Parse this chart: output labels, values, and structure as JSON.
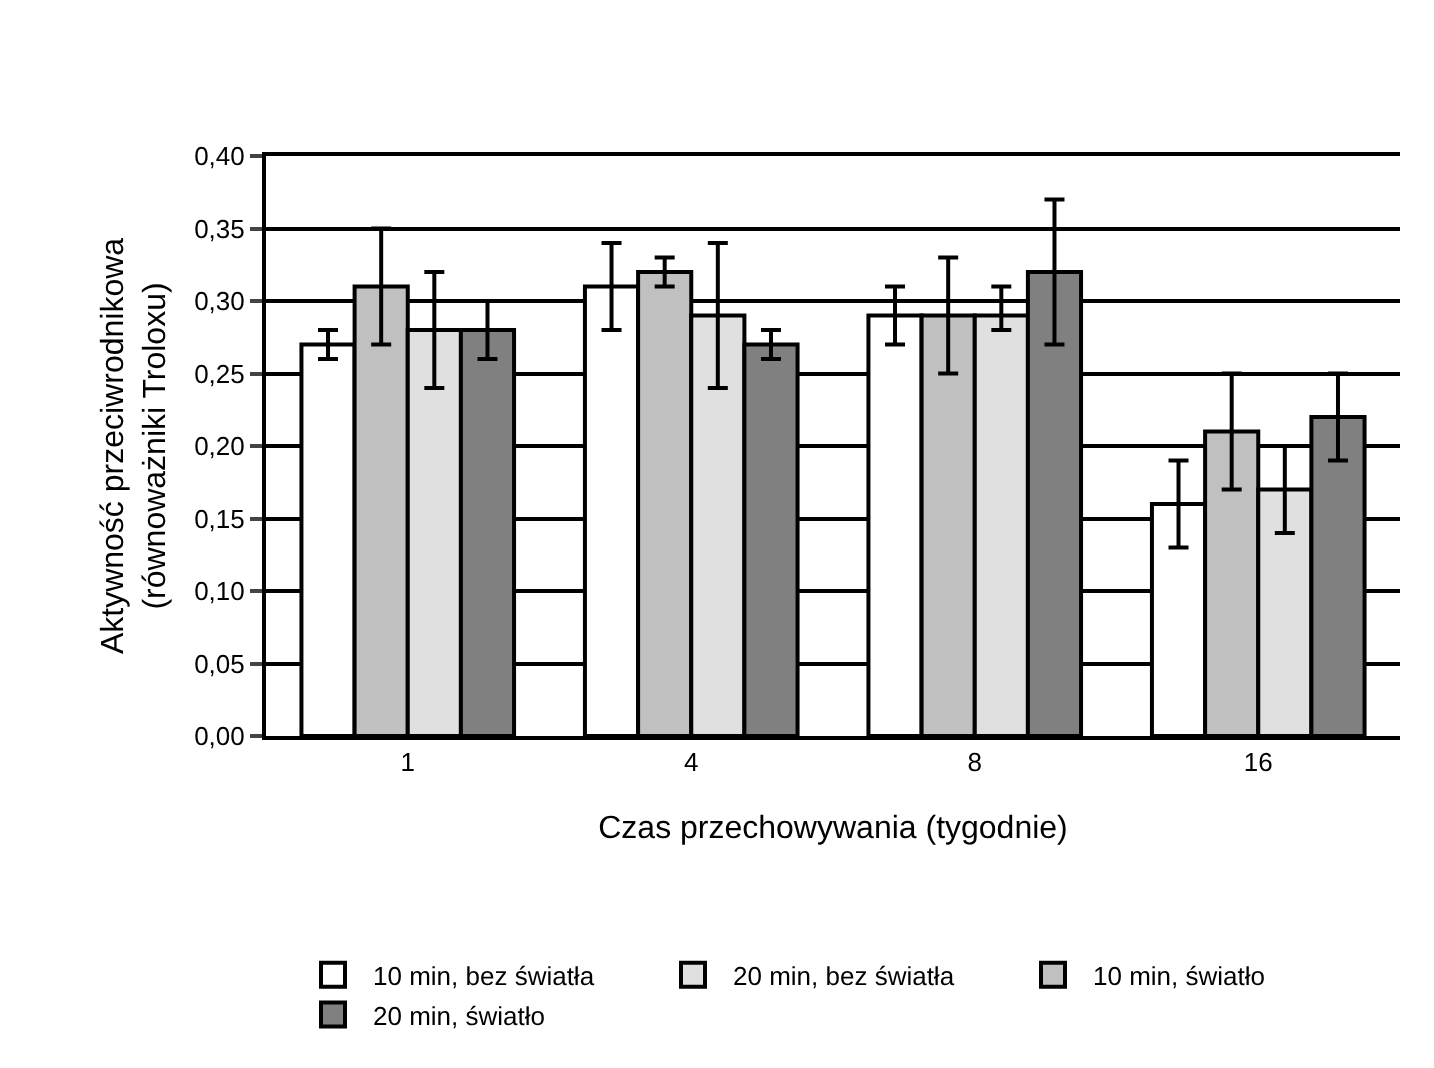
{
  "chart_data": {
    "type": "bar",
    "xlabel": "Czas przechowywania (tygodnie)",
    "ylabel": "Aktywność przeciwrodnikowa\n(równoważniki Troloxu)",
    "categories": [
      "1",
      "4",
      "8",
      "16"
    ],
    "series": [
      {
        "name": "10 min, bez światła",
        "color": "#ffffff",
        "values": [
          0.27,
          0.31,
          0.29,
          0.16
        ],
        "errors": [
          0.01,
          0.03,
          0.02,
          0.03
        ]
      },
      {
        "name": "10 min, światło",
        "color": "#c0c0c0",
        "values": [
          0.31,
          0.32,
          0.29,
          0.21
        ],
        "errors": [
          0.04,
          0.01,
          0.04,
          0.04
        ]
      },
      {
        "name": "20 min, bez światła",
        "color": "#e0e0e0",
        "values": [
          0.28,
          0.29,
          0.29,
          0.17
        ],
        "errors": [
          0.04,
          0.05,
          [
            0.28,
            0.31
          ],
          0.03
        ]
      },
      {
        "name": "20 min, światło",
        "color": "#808080",
        "values": [
          0.28,
          0.27,
          0.32,
          0.22
        ],
        "errors": [
          0.02,
          0.01,
          0.05,
          0.03
        ]
      }
    ],
    "ylim": [
      0,
      0.4
    ],
    "yticks": [
      {
        "value": 0,
        "label": "0,00"
      },
      {
        "value": 0.05,
        "label": "0,05"
      },
      {
        "value": 0.1,
        "label": "0,10"
      },
      {
        "value": 0.15,
        "label": "0,15"
      },
      {
        "value": 0.2,
        "label": "0,20"
      },
      {
        "value": 0.25,
        "label": "0,25"
      },
      {
        "value": 0.3,
        "label": "0,30"
      },
      {
        "value": 0.35,
        "label": "0,35"
      },
      {
        "value": 0.4,
        "label": "0,40"
      }
    ],
    "grid": "y",
    "legend": "bottom"
  }
}
